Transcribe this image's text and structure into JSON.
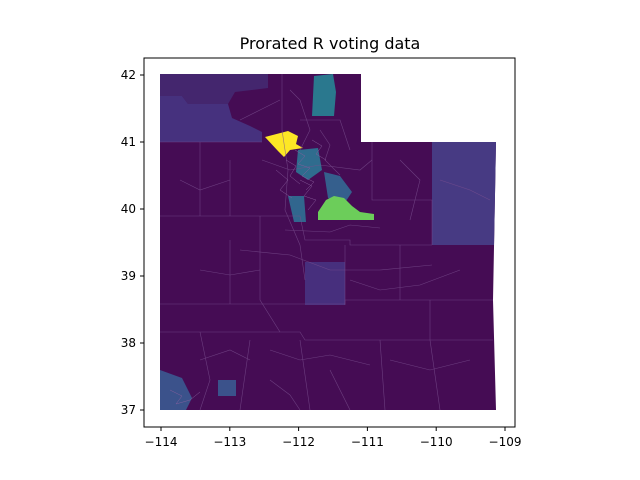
{
  "title": "Prorated R voting data",
  "colors": {
    "background": "#ffffff",
    "base_precinct": "#450c54",
    "low_mid": "#433d84",
    "mid": "#2a788e",
    "high_green": "#6ccd5a",
    "top_yellow": "#fde725",
    "precinct_line": "#7a4f8f"
  },
  "map": {
    "type": "choropleth",
    "colormap": "viridis",
    "region": "Utah precincts",
    "x_ticks": [
      "−114",
      "−113",
      "−112",
      "−111",
      "−110",
      "−109"
    ],
    "y_ticks": [
      "37",
      "38",
      "39",
      "40",
      "41",
      "42"
    ],
    "xlim": [
      -114.2,
      -108.8
    ],
    "ylim": [
      36.8,
      42.2
    ]
  }
}
